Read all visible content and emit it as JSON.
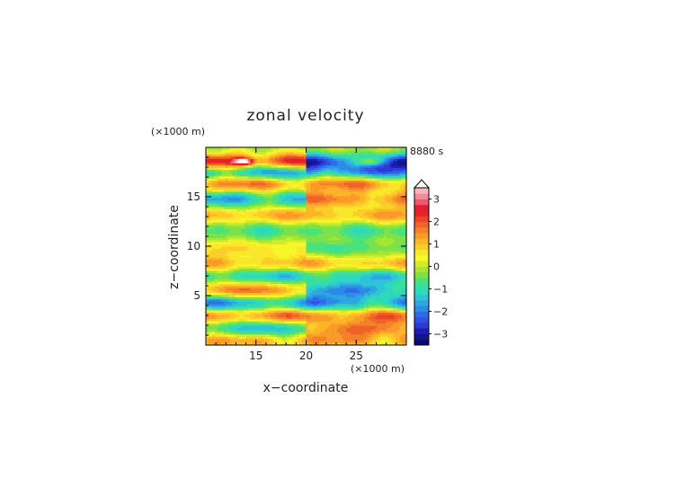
{
  "chart_data": {
    "type": "heatmap",
    "title": "zonal velocity",
    "time_label": "8880 s",
    "xlabel": "x−coordinate",
    "ylabel": "z−coordinate",
    "x_unit": "(×1000 m)",
    "y_unit": "(×1000 m)",
    "xlim": [
      10,
      30
    ],
    "ylim": [
      0,
      20
    ],
    "x_ticks": [
      "15",
      "20",
      "25"
    ],
    "x_tick_values": [
      15,
      20,
      25
    ],
    "y_ticks": [
      "5",
      "10",
      "15"
    ],
    "y_tick_values": [
      5,
      10,
      15
    ],
    "colorbar": {
      "range": [
        -3.5,
        3.5
      ],
      "step": 0.25,
      "tick_labels": [
        "3",
        "2",
        "1",
        "0",
        "−1",
        "−2",
        "−3"
      ],
      "tick_values": [
        3,
        2,
        1,
        0,
        -1,
        -2,
        -3
      ],
      "colors": [
        "#0a0a6e",
        "#14148c",
        "#1c1cb4",
        "#2a3ad2",
        "#3350e8",
        "#2f6be8",
        "#2e8ae8",
        "#2ea6e0",
        "#2ec4d8",
        "#2ed8c0",
        "#36e0a0",
        "#4be27a",
        "#7be24a",
        "#a6e632",
        "#d2ec28",
        "#f6f62a",
        "#fae62a",
        "#fccd28",
        "#fcb428",
        "#fa9a28",
        "#f48028",
        "#ee6428",
        "#ea4424",
        "#e62424",
        "#e41c3c",
        "#ea5a6e",
        "#f08c98",
        "#f6b6bc"
      ]
    },
    "layers": [
      {
        "z": 18.6,
        "amp": 2.8
      },
      {
        "z": 17.5,
        "amp": -2.2
      },
      {
        "z": 16.4,
        "amp": 2.0
      },
      {
        "z": 14.8,
        "amp": -1.8
      },
      {
        "z": 13.2,
        "amp": 1.4
      },
      {
        "z": 11.6,
        "amp": -0.9
      },
      {
        "z": 9.8,
        "amp": 0.8
      },
      {
        "z": 8.3,
        "amp": 1.3
      },
      {
        "z": 7.0,
        "amp": -1.5
      },
      {
        "z": 5.6,
        "amp": 1.9
      },
      {
        "z": 4.3,
        "amp": -2.1
      },
      {
        "z": 3.0,
        "amp": 2.0
      },
      {
        "z": 1.7,
        "amp": -1.7
      },
      {
        "z": 0.5,
        "amp": 1.5
      }
    ]
  }
}
